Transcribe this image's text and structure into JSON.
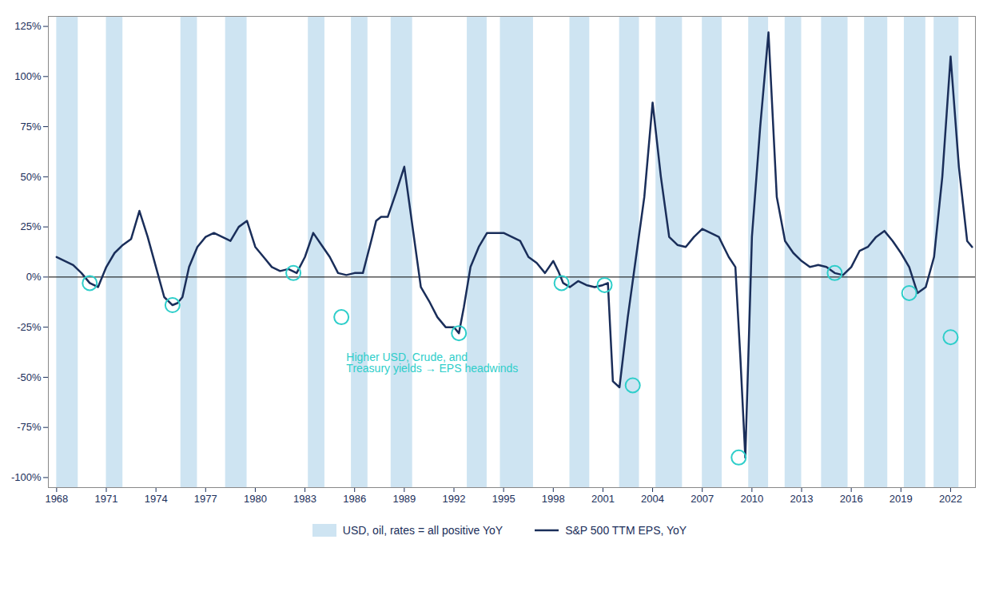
{
  "chart_data": {
    "type": "line",
    "x": [
      1968.0,
      1968.5,
      1969.0,
      1969.5,
      1970.0,
      1970.5,
      1971.0,
      1971.5,
      1972.0,
      1972.5,
      1973.0,
      1973.5,
      1974.0,
      1974.5,
      1975.0,
      1975.3,
      1975.6,
      1976.0,
      1976.5,
      1977.0,
      1977.5,
      1978.0,
      1978.5,
      1979.0,
      1979.5,
      1980.0,
      1980.5,
      1981.0,
      1981.5,
      1982.0,
      1982.5,
      1983.0,
      1983.5,
      1984.0,
      1984.5,
      1985.0,
      1985.5,
      1986.0,
      1986.5,
      1987.0,
      1987.3,
      1987.6,
      1988.0,
      1988.5,
      1989.0,
      1989.5,
      1990.0,
      1990.5,
      1991.0,
      1991.5,
      1992.0,
      1992.3,
      1992.6,
      1993.0,
      1993.5,
      1994.0,
      1994.5,
      1995.0,
      1995.5,
      1996.0,
      1996.5,
      1997.0,
      1997.5,
      1998.0,
      1998.3,
      1998.6,
      1999.0,
      1999.5,
      2000.0,
      2000.5,
      2001.0,
      2001.3,
      2001.6,
      2002.0,
      2002.5,
      2003.0,
      2003.5,
      2004.0,
      2004.5,
      2005.0,
      2005.5,
      2006.0,
      2006.5,
      2007.0,
      2007.5,
      2008.0,
      2008.3,
      2008.6,
      2009.0,
      2009.3,
      2009.6,
      2010.0,
      2010.5,
      2011.0,
      2011.5,
      2012.0,
      2012.5,
      2013.0,
      2013.5,
      2014.0,
      2014.5,
      2015.0,
      2015.5,
      2016.0,
      2016.5,
      2017.0,
      2017.5,
      2018.0,
      2018.5,
      2019.0,
      2019.5,
      2020.0,
      2020.5,
      2021.0,
      2021.5,
      2022.0,
      2022.5,
      2023.0,
      2023.3
    ],
    "series": [
      {
        "name": "S&P 500 TTM EPS, YoY",
        "color": "#1a2e5a",
        "values": [
          10,
          8,
          6,
          2,
          -3,
          -5,
          5,
          12,
          16,
          19,
          33,
          20,
          5,
          -10,
          -14,
          -13,
          -10,
          5,
          15,
          20,
          22,
          20,
          18,
          25,
          28,
          15,
          10,
          5,
          3,
          4,
          2,
          10,
          22,
          16,
          10,
          2,
          1,
          2,
          2,
          18,
          28,
          30,
          30,
          42,
          55,
          25,
          -5,
          -12,
          -20,
          -25,
          -25,
          -28,
          -15,
          5,
          15,
          22,
          22,
          22,
          20,
          18,
          10,
          7,
          2,
          8,
          3,
          -3,
          -5,
          -2,
          -4,
          -5,
          -4,
          -3,
          -52,
          -55,
          -20,
          10,
          40,
          87,
          50,
          20,
          16,
          15,
          20,
          24,
          22,
          20,
          15,
          10,
          5,
          -40,
          -90,
          20,
          75,
          122,
          40,
          18,
          12,
          8,
          5,
          6,
          5,
          2,
          1,
          5,
          13,
          15,
          20,
          23,
          18,
          12,
          5,
          -8,
          -5,
          10,
          50,
          110,
          55,
          18,
          15
        ]
      }
    ],
    "shaded_periods": {
      "name": "USD, oil, rates = all positive YoY",
      "color": "#c5dff0",
      "periods": [
        [
          1968.0,
          1969.3
        ],
        [
          1971.0,
          1972.0
        ],
        [
          1975.5,
          1976.5
        ],
        [
          1978.2,
          1979.5
        ],
        [
          1983.2,
          1984.2
        ],
        [
          1985.8,
          1986.8
        ],
        [
          1988.2,
          1989.5
        ],
        [
          1992.8,
          1994.0
        ],
        [
          1994.8,
          1996.8
        ],
        [
          1999.0,
          2000.2
        ],
        [
          2002.0,
          2003.2
        ],
        [
          2004.2,
          2005.8
        ],
        [
          2007.0,
          2008.2
        ],
        [
          2009.8,
          2011.0
        ],
        [
          2012.0,
          2013.0
        ],
        [
          2014.2,
          2015.8
        ],
        [
          2016.8,
          2018.2
        ],
        [
          2019.2,
          2020.5
        ],
        [
          2021.0,
          2022.5
        ]
      ]
    },
    "highlights": {
      "color": "#2ececa",
      "points": [
        [
          1970.0,
          -3
        ],
        [
          1975.0,
          -14
        ],
        [
          1982.3,
          2
        ],
        [
          1985.2,
          -20
        ],
        [
          1992.3,
          -28
        ],
        [
          1998.5,
          -3
        ],
        [
          2001.1,
          -4
        ],
        [
          2002.8,
          -54
        ],
        [
          2009.2,
          -90
        ],
        [
          2015.0,
          2
        ],
        [
          2019.5,
          -8
        ],
        [
          2022.0,
          -30
        ]
      ]
    },
    "annotations": [
      {
        "text": "Higher USD, Crude, and\nTreasury yields → EPS headwinds",
        "x": 1985.5,
        "y": -38,
        "color": "#2ececa"
      }
    ],
    "reference_lines": {
      "y": [
        0
      ]
    },
    "xlim": [
      1967.5,
      2023.5
    ],
    "xticks": [
      1968,
      1971,
      1974,
      1977,
      1980,
      1983,
      1986,
      1989,
      1992,
      1995,
      1998,
      2001,
      2004,
      2007,
      2010,
      2013,
      2016,
      2019,
      2022
    ],
    "ylim": [
      -105,
      130
    ],
    "yticks": [
      {
        "value": -100,
        "label": "-100%"
      },
      {
        "value": -75,
        "label": "-75%"
      },
      {
        "value": -50,
        "label": "-50%"
      },
      {
        "value": -25,
        "label": "-25%"
      },
      {
        "value": 0,
        "label": "0%"
      },
      {
        "value": 25,
        "label": "25%"
      },
      {
        "value": 50,
        "label": "50%"
      },
      {
        "value": 75,
        "label": "75%"
      },
      {
        "value": 100,
        "label": "100%"
      },
      {
        "value": 125,
        "label": "125%"
      }
    ],
    "grid": false,
    "legend": "bottom"
  }
}
